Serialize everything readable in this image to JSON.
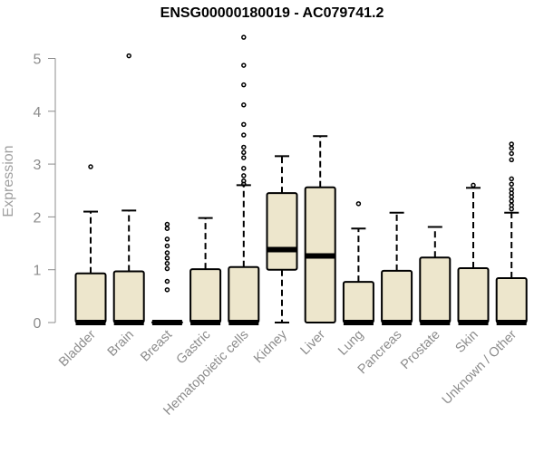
{
  "chart_data": {
    "type": "box",
    "title": "ENSG00000180019 - AC079741.2",
    "ylabel": "Expression",
    "xlabel": "",
    "ylim": [
      0,
      5.5
    ],
    "yticks": [
      0,
      1,
      2,
      3,
      4,
      5
    ],
    "grid": false,
    "box_fill": "#ede6cc",
    "categories": [
      "Bladder",
      "Brain",
      "Breast",
      "Gastric",
      "Hematopoietic cells",
      "Kidney",
      "Liver",
      "Lung",
      "Pancreas",
      "Prostate",
      "Skin",
      "Unknown / Other"
    ],
    "boxes": [
      {
        "q1": 0,
        "median": 0,
        "q3": 0.93,
        "whisker_low": 0,
        "whisker_high": 2.1,
        "outliers": [
          2.95
        ]
      },
      {
        "q1": 0,
        "median": 0,
        "q3": 0.97,
        "whisker_low": 0,
        "whisker_high": 2.12,
        "outliers": [
          5.05
        ]
      },
      {
        "q1": 0,
        "median": 0,
        "q3": 0.01,
        "whisker_low": 0,
        "whisker_high": 0.01,
        "outliers": [
          0.62,
          0.78,
          1.02,
          1.12,
          1.22,
          1.32,
          1.45,
          1.58,
          1.78,
          1.86
        ]
      },
      {
        "q1": 0,
        "median": 0,
        "q3": 1.01,
        "whisker_low": 0,
        "whisker_high": 1.98,
        "outliers": []
      },
      {
        "q1": 0,
        "median": 0,
        "q3": 1.05,
        "whisker_low": 0,
        "whisker_high": 2.6,
        "outliers": [
          2.62,
          2.68,
          2.78,
          2.92,
          3.12,
          3.22,
          3.32,
          3.55,
          3.75,
          4.12,
          4.5,
          4.87,
          5.4
        ]
      },
      {
        "q1": 1.0,
        "median": 1.38,
        "q3": 2.45,
        "whisker_low": 0,
        "whisker_high": 3.15,
        "outliers": []
      },
      {
        "q1": 0,
        "median": 1.26,
        "q3": 2.56,
        "whisker_low": 0,
        "whisker_high": 3.53,
        "outliers": []
      },
      {
        "q1": 0,
        "median": 0,
        "q3": 0.77,
        "whisker_low": 0,
        "whisker_high": 1.78,
        "outliers": [
          2.25
        ]
      },
      {
        "q1": 0,
        "median": 0,
        "q3": 0.98,
        "whisker_low": 0,
        "whisker_high": 2.08,
        "outliers": []
      },
      {
        "q1": 0,
        "median": 0,
        "q3": 1.23,
        "whisker_low": 0,
        "whisker_high": 1.81,
        "outliers": []
      },
      {
        "q1": 0,
        "median": 0,
        "q3": 1.03,
        "whisker_low": 0,
        "whisker_high": 2.55,
        "outliers": [
          2.6
        ]
      },
      {
        "q1": 0,
        "median": 0,
        "q3": 0.84,
        "whisker_low": 0,
        "whisker_high": 2.08,
        "outliers": [
          2.15,
          2.22,
          2.3,
          2.38,
          2.45,
          2.52,
          2.62,
          2.72,
          3.08,
          3.2,
          3.3,
          3.38
        ]
      }
    ]
  }
}
